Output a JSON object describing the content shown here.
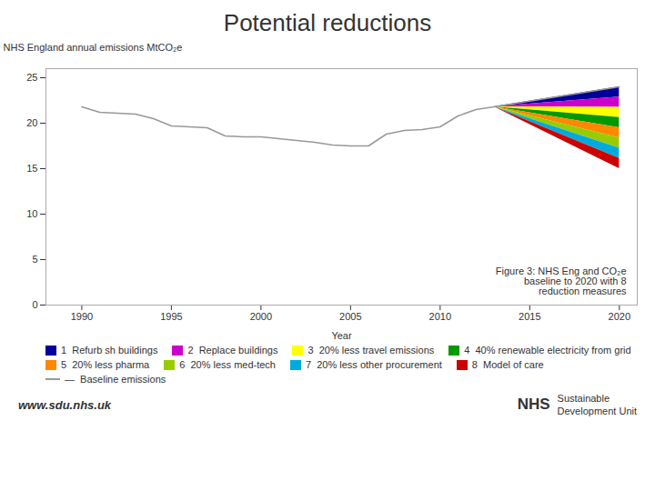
{
  "chart_data": {
    "type": "area",
    "title": "Potential reductions",
    "x_label": "Year",
    "y_label": "NHS England annual emissions MtCO₂e",
    "xlim": [
      1988,
      2021
    ],
    "xticks": [
      1990,
      1995,
      2000,
      2005,
      2010,
      2015,
      2020
    ],
    "ylim": [
      0,
      26
    ],
    "yticks": [
      0,
      5,
      10,
      15,
      20,
      25
    ],
    "legend": "bottom",
    "series": [
      {
        "name": "1  Refurb sh buildings",
        "type": "area",
        "color": "#000099",
        "x": [
          2013,
          2020
        ],
        "low": [
          21.8,
          22.875
        ],
        "high": [
          21.8,
          24.0
        ]
      },
      {
        "name": "2  Replace buildings",
        "type": "area",
        "color": "#CC00CC",
        "x": [
          2013,
          2020
        ],
        "low": [
          21.8,
          21.75
        ],
        "high": [
          21.8,
          22.875
        ]
      },
      {
        "name": "3  20% less travel emissions",
        "type": "area",
        "color": "#FFFF00",
        "x": [
          2013,
          2020
        ],
        "low": [
          21.8,
          20.625
        ],
        "high": [
          21.8,
          21.75
        ]
      },
      {
        "name": "4  40% renewable electricity from grid",
        "type": "area",
        "color": "#009900",
        "x": [
          2013,
          2020
        ],
        "low": [
          21.8,
          19.5
        ],
        "high": [
          21.8,
          20.625
        ]
      },
      {
        "name": "5  20% less pharma",
        "type": "area",
        "color": "#FF8800",
        "x": [
          2013,
          2020
        ],
        "low": [
          21.8,
          18.375
        ],
        "high": [
          21.8,
          19.5
        ]
      },
      {
        "name": "6  20% less med-tech",
        "type": "area",
        "color": "#99CC00",
        "x": [
          2013,
          2020
        ],
        "low": [
          21.8,
          17.25
        ],
        "high": [
          21.8,
          18.375
        ]
      },
      {
        "name": "7  20% less other procurement",
        "type": "area",
        "color": "#00AADD",
        "x": [
          2013,
          2020
        ],
        "low": [
          21.8,
          16.125
        ],
        "high": [
          21.8,
          17.25
        ]
      },
      {
        "name": "8  Model of care",
        "type": "area",
        "color": "#CC0000",
        "x": [
          2013,
          2020
        ],
        "low": [
          21.8,
          15.0
        ],
        "high": [
          21.8,
          16.125
        ]
      },
      {
        "name": "—  Baseline emissions",
        "type": "line",
        "color": "#999999",
        "x": [
          1990,
          1991,
          1992,
          1993,
          1994,
          1995,
          1996,
          1997,
          1998,
          1999,
          2000,
          2001,
          2002,
          2003,
          2004,
          2005,
          2006,
          2007,
          2008,
          2009,
          2010,
          2011,
          2012,
          2013,
          2020
        ],
        "values": [
          21.8,
          21.2,
          21.1,
          21.0,
          20.5,
          19.7,
          19.6,
          19.5,
          18.6,
          18.5,
          18.5,
          18.3,
          18.1,
          17.9,
          17.6,
          17.5,
          17.5,
          18.8,
          19.2,
          19.3,
          19.6,
          20.8,
          21.5,
          21.8,
          24.0
        ]
      }
    ],
    "caption": "Figure 3: NHS Eng and CO₂e\nbaseline to 2020 with 8\nreduction measures",
    "annotations": [
      "www.sdu.nhs.uk",
      "NHS",
      "Sustainable",
      "Development Unit"
    ]
  }
}
